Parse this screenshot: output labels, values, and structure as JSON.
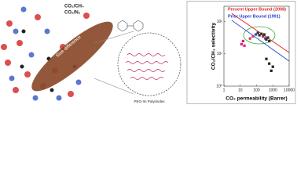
{
  "illustration": {
    "labels": [
      "CO₂/CH₄",
      "CO₂/N₂",
      "Size difference",
      "PEG-Im Polyimides"
    ]
  },
  "chart_data": {
    "type": "scatter",
    "xlabel": "CO₂ permeability (Barrer)",
    "ylabel": "CO₂/CH₄ selectivity",
    "log_x": true,
    "log_y": true,
    "xlim": [
      1,
      10000
    ],
    "ylim": [
      1,
      300
    ],
    "xticks": [
      1,
      10,
      100,
      1000,
      10000
    ],
    "yticks": [
      {
        "value": 1,
        "label": "10⁰"
      },
      {
        "value": 10,
        "label": "10¹"
      },
      {
        "value": 100,
        "label": "10²"
      }
    ],
    "series": [
      {
        "name": "Present Upper Bound (2008)",
        "color": "#e02020",
        "x": [
          3,
          10000
        ],
        "values": [
          180,
          11
        ]
      },
      {
        "name": "Prior Upper Bound (1991)",
        "color": "#2040d0",
        "x": [
          3,
          10000
        ],
        "values": [
          110,
          6
        ]
      }
    ],
    "points": {
      "x": [
        12,
        15,
        18,
        40,
        60,
        90,
        120,
        150,
        200,
        250,
        300,
        350,
        400,
        500,
        600,
        400,
        600,
        800,
        1000
      ],
      "values": [
        20,
        25,
        18,
        30,
        35,
        40,
        45,
        38,
        42,
        35,
        40,
        30,
        28,
        32,
        25,
        7,
        5,
        3,
        4
      ],
      "colors": [
        "#e0207a",
        "#e0207a",
        "#e0207a",
        "#d04060",
        "#d04060",
        "#3050c0",
        "#303030",
        "#303030",
        "#303030",
        "#a03020",
        "#303030",
        "#3050c0",
        "#303030",
        "#303030",
        "#303030",
        "#202020",
        "#202020",
        "#202020",
        "#202020"
      ]
    }
  }
}
